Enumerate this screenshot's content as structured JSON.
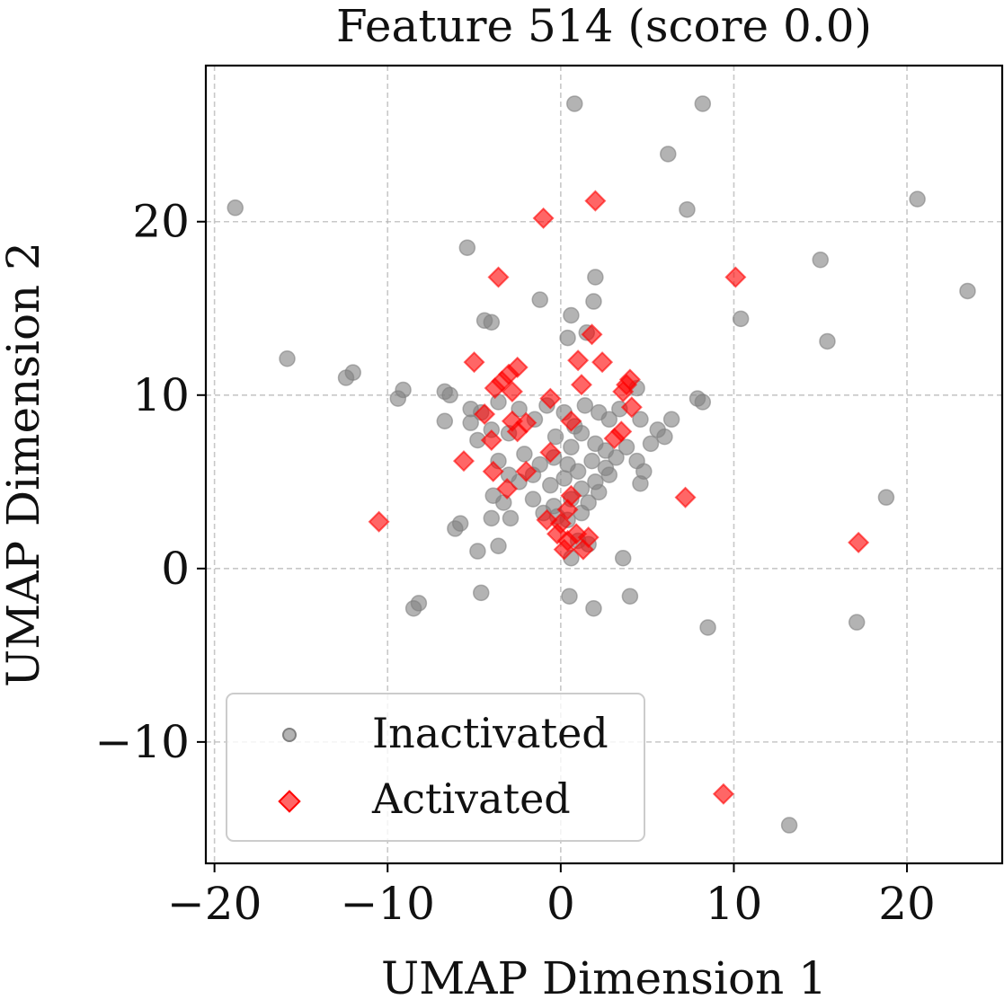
{
  "chart_data": {
    "type": "scatter",
    "title": "Feature 514 (score 0.0)",
    "xlabel": "UMAP Dimension 1",
    "ylabel": "UMAP Dimension 2",
    "xlim": [
      -20.5,
      25.5
    ],
    "ylim": [
      -17,
      29
    ],
    "xticks": [
      -20,
      -10,
      0,
      10,
      20
    ],
    "yticks": [
      -10,
      0,
      10,
      20
    ],
    "xtick_labels": [
      "−20",
      "−10",
      "0",
      "10",
      "20"
    ],
    "ytick_labels": [
      "−10",
      "0",
      "10",
      "20"
    ],
    "grid": true,
    "legend_position": "lower-left",
    "series": [
      {
        "name": "Inactivated",
        "marker": "circle",
        "color": "#808080",
        "points": [
          [
            0.8,
            26.8
          ],
          [
            8.2,
            26.8
          ],
          [
            6.2,
            23.9
          ],
          [
            7.3,
            20.7
          ],
          [
            20.6,
            21.3
          ],
          [
            -18.8,
            20.8
          ],
          [
            -5.4,
            18.5
          ],
          [
            15.0,
            17.8
          ],
          [
            2.0,
            16.8
          ],
          [
            23.5,
            16.0
          ],
          [
            -1.2,
            15.5
          ],
          [
            1.9,
            15.4
          ],
          [
            0.6,
            14.6
          ],
          [
            -4.4,
            14.3
          ],
          [
            -4.0,
            14.2
          ],
          [
            10.4,
            14.4
          ],
          [
            1.5,
            13.6
          ],
          [
            15.4,
            13.1
          ],
          [
            0.4,
            13.3
          ],
          [
            -15.8,
            12.1
          ],
          [
            -12.0,
            11.3
          ],
          [
            -12.4,
            11.0
          ],
          [
            -9.1,
            10.3
          ],
          [
            -9.4,
            9.8
          ],
          [
            -6.7,
            10.2
          ],
          [
            -6.4,
            10.0
          ],
          [
            -5.2,
            9.2
          ],
          [
            -4.6,
            9.0
          ],
          [
            -3.6,
            9.6
          ],
          [
            -6.7,
            8.5
          ],
          [
            -5.2,
            8.4
          ],
          [
            -4.0,
            8.0
          ],
          [
            -4.8,
            7.4
          ],
          [
            -3.0,
            7.8
          ],
          [
            -2.4,
            9.2
          ],
          [
            -1.5,
            8.6
          ],
          [
            -0.8,
            9.4
          ],
          [
            0.2,
            9.0
          ],
          [
            0.8,
            8.2
          ],
          [
            1.4,
            9.4
          ],
          [
            2.2,
            9.0
          ],
          [
            2.8,
            8.6
          ],
          [
            3.4,
            9.2
          ],
          [
            4.4,
            10.4
          ],
          [
            4.6,
            8.6
          ],
          [
            5.6,
            8.0
          ],
          [
            6.0,
            7.6
          ],
          [
            5.2,
            7.2
          ],
          [
            7.9,
            9.8
          ],
          [
            8.2,
            9.6
          ],
          [
            6.4,
            8.6
          ],
          [
            -0.3,
            7.6
          ],
          [
            0.6,
            7.0
          ],
          [
            1.2,
            7.8
          ],
          [
            2.0,
            7.2
          ],
          [
            2.6,
            6.8
          ],
          [
            3.2,
            6.4
          ],
          [
            3.8,
            7.0
          ],
          [
            -2.1,
            6.6
          ],
          [
            -1.2,
            6.0
          ],
          [
            -0.4,
            6.4
          ],
          [
            0.4,
            6.0
          ],
          [
            1.0,
            5.6
          ],
          [
            1.8,
            6.2
          ],
          [
            2.6,
            5.8
          ],
          [
            4.4,
            6.2
          ],
          [
            4.8,
            5.6
          ],
          [
            -3.6,
            6.2
          ],
          [
            -3.0,
            5.4
          ],
          [
            -2.4,
            5.0
          ],
          [
            -1.6,
            5.4
          ],
          [
            -0.6,
            4.8
          ],
          [
            0.2,
            5.2
          ],
          [
            1.2,
            4.6
          ],
          [
            2.0,
            5.0
          ],
          [
            2.8,
            5.4
          ],
          [
            4.6,
            4.9
          ],
          [
            -3.9,
            4.2
          ],
          [
            -3.3,
            3.8
          ],
          [
            -1.6,
            4.0
          ],
          [
            -0.4,
            3.6
          ],
          [
            0.6,
            4.0
          ],
          [
            1.6,
            3.8
          ],
          [
            2.2,
            4.4
          ],
          [
            -1.0,
            3.2
          ],
          [
            -0.2,
            3.0
          ],
          [
            0.4,
            2.8
          ],
          [
            1.2,
            3.2
          ],
          [
            -4.0,
            2.9
          ],
          [
            -2.9,
            2.9
          ],
          [
            -5.8,
            2.6
          ],
          [
            -6.1,
            2.3
          ],
          [
            -3.6,
            1.3
          ],
          [
            -4.8,
            1.0
          ],
          [
            0.6,
            0.6
          ],
          [
            1.0,
            1.6
          ],
          [
            1.6,
            1.4
          ],
          [
            3.6,
            0.6
          ],
          [
            -4.6,
            -1.4
          ],
          [
            0.5,
            -1.6
          ],
          [
            4.0,
            -1.6
          ],
          [
            -8.2,
            -2.0
          ],
          [
            -8.5,
            -2.3
          ],
          [
            1.9,
            -2.3
          ],
          [
            8.5,
            -3.4
          ],
          [
            17.1,
            -3.1
          ],
          [
            18.8,
            4.1
          ],
          [
            13.2,
            -14.8
          ]
        ]
      },
      {
        "name": "Activated",
        "marker": "diamond",
        "color": "#ff0000",
        "points": [
          [
            2.0,
            21.2
          ],
          [
            -1.0,
            20.2
          ],
          [
            10.1,
            16.8
          ],
          [
            -3.6,
            16.8
          ],
          [
            -5.0,
            11.9
          ],
          [
            2.4,
            11.9
          ],
          [
            1.0,
            12.0
          ],
          [
            1.8,
            13.5
          ],
          [
            -2.5,
            11.6
          ],
          [
            -3.0,
            11.2
          ],
          [
            -3.4,
            10.8
          ],
          [
            -3.8,
            10.4
          ],
          [
            -2.8,
            10.2
          ],
          [
            -0.6,
            9.8
          ],
          [
            1.2,
            10.6
          ],
          [
            3.8,
            10.6
          ],
          [
            4.0,
            10.9
          ],
          [
            3.6,
            10.2
          ],
          [
            4.1,
            9.3
          ],
          [
            -4.4,
            8.9
          ],
          [
            -2.8,
            8.5
          ],
          [
            -2.0,
            8.4
          ],
          [
            -2.5,
            7.9
          ],
          [
            0.6,
            8.5
          ],
          [
            -4.0,
            7.4
          ],
          [
            -3.9,
            5.6
          ],
          [
            -3.1,
            4.6
          ],
          [
            -2.0,
            5.6
          ],
          [
            -0.6,
            6.7
          ],
          [
            3.1,
            7.5
          ],
          [
            3.5,
            7.9
          ],
          [
            -5.6,
            6.2
          ],
          [
            0.6,
            4.2
          ],
          [
            7.2,
            4.1
          ],
          [
            -10.5,
            2.7
          ],
          [
            -0.8,
            2.8
          ],
          [
            0.0,
            2.6
          ],
          [
            0.4,
            3.4
          ],
          [
            -0.2,
            2.0
          ],
          [
            0.4,
            1.6
          ],
          [
            0.9,
            2.0
          ],
          [
            1.3,
            1.1
          ],
          [
            1.6,
            1.8
          ],
          [
            0.2,
            1.1
          ],
          [
            17.2,
            1.5
          ],
          [
            9.4,
            -13.0
          ]
        ]
      }
    ]
  }
}
